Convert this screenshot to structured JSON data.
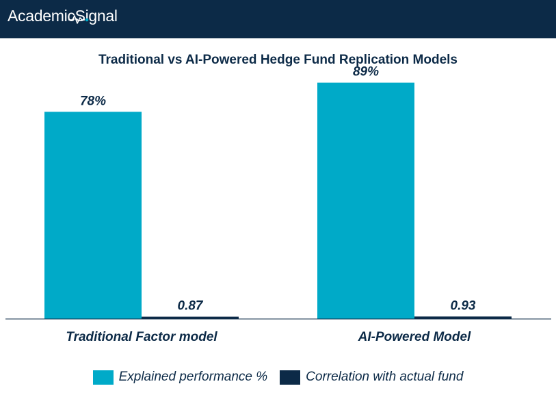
{
  "brand": {
    "name": "AcademicSignal",
    "icon": "pulse-icon"
  },
  "colors": {
    "header_bg": "#0c2a47",
    "series1": "#00aac8",
    "series2": "#0c2a47",
    "text": "#0c2a47"
  },
  "chart_data": {
    "type": "bar",
    "title": "Traditional vs AI-Powered Hedge Fund Replication Models",
    "categories": [
      "Traditional Factor model",
      "AI-Powered Model"
    ],
    "series": [
      {
        "name": "Explained performance %",
        "values": [
          78,
          89
        ],
        "labels": [
          "78%",
          "89%"
        ]
      },
      {
        "name": "Correlation with actual fund",
        "values": [
          0.87,
          0.93
        ],
        "labels": [
          "0.87",
          "0.93"
        ]
      }
    ],
    "ylim": [
      0,
      100
    ],
    "grid": false,
    "legend": "bottom",
    "xlabel": "",
    "ylabel": ""
  }
}
